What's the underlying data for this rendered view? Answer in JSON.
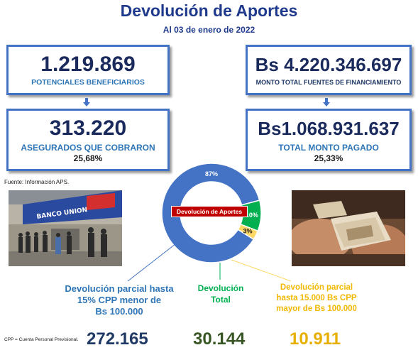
{
  "header": {
    "title": "Devolución de Aportes",
    "subtitle": "Al 03 de enero de 2022"
  },
  "boxes": {
    "beneficiarios": {
      "value": "1.219.869",
      "label": "POTENCIALES BENEFICIARIOS"
    },
    "monto_total": {
      "value": "Bs 4.220.346.697",
      "label": "MONTO TOTAL FUENTES DE FINANCIAMIENTO"
    },
    "asegurados": {
      "value": "313.220",
      "label": "ASEGURADOS QUE COBRARON",
      "percent": "25,68%"
    },
    "monto_pagado": {
      "value": "Bs1.068.931.637",
      "label": "TOTAL MONTO PAGADO",
      "percent": "25,33%"
    }
  },
  "source": "Fuente: Información APS.",
  "donut": {
    "center_label": "Devolución de Aportes",
    "slices": [
      {
        "label": "87%",
        "value": 87,
        "color": "#4472c4"
      },
      {
        "label": "10%",
        "value": 10,
        "color": "#00b050"
      },
      {
        "label": "3%",
        "value": 3,
        "color": "#ffd966"
      }
    ]
  },
  "categories": {
    "parcial_15": {
      "lines": [
        "Devolución parcial hasta",
        "15% CPP menor de",
        "Bs 100.000"
      ],
      "color": "#2e75b6",
      "count": "272.165",
      "count_color": "#1f3864"
    },
    "total": {
      "lines": [
        "Devolución",
        "Total"
      ],
      "color": "#00b050",
      "count": "30.144",
      "count_color": "#375623"
    },
    "parcial_15000": {
      "lines": [
        "Devolución parcial",
        "hasta 15.000 Bs CPP",
        "mayor de Bs 100.000"
      ],
      "color": "#f2b800",
      "count": "10.911",
      "count_color": "#e6b000"
    }
  },
  "footnote": "CPP = Cuenta Personal Previsional."
}
